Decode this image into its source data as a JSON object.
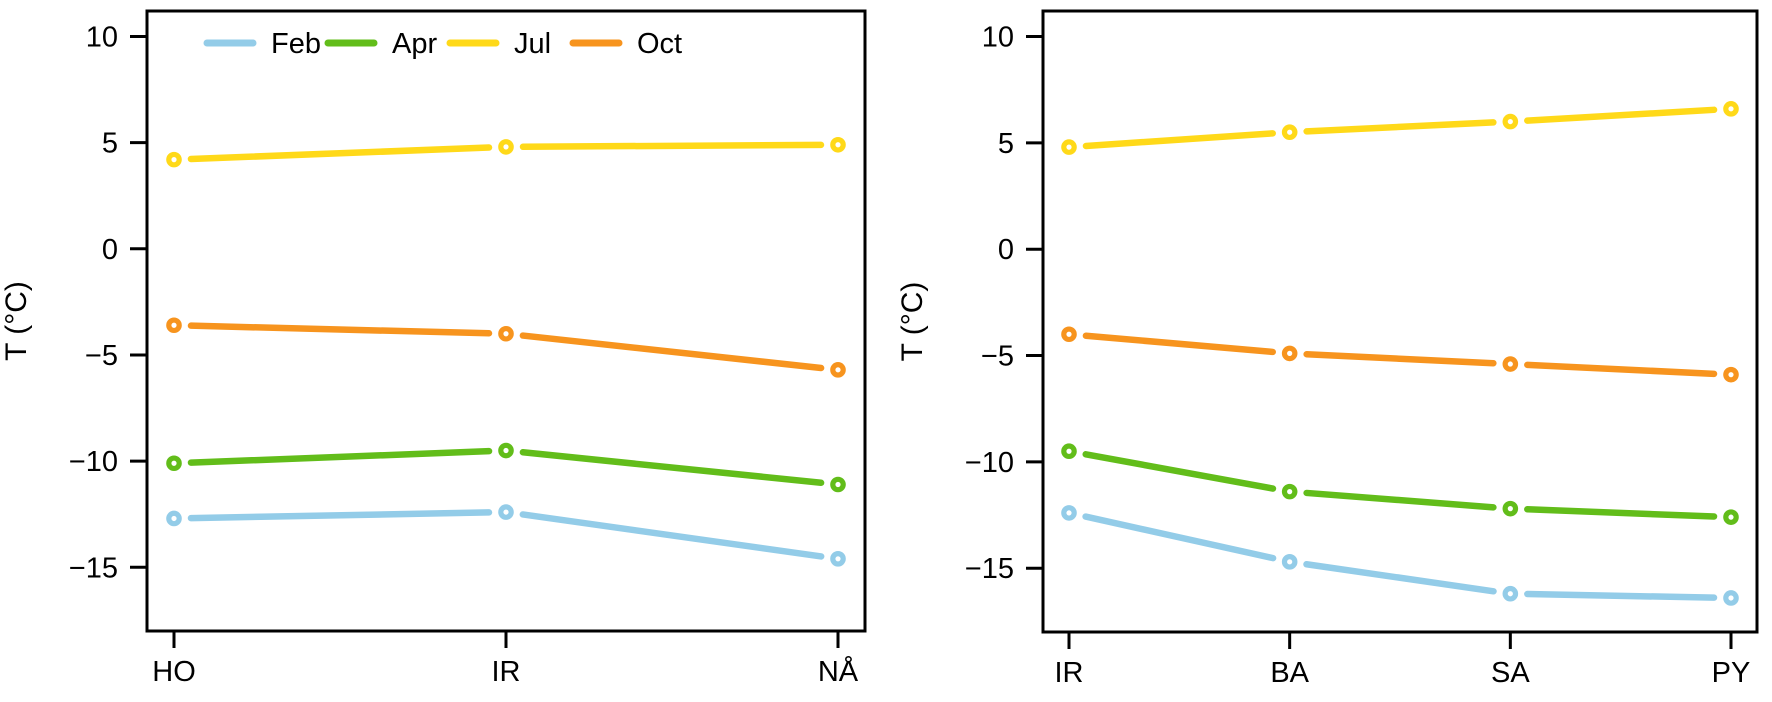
{
  "figure": {
    "background": "#ffffff",
    "axis_color": "#000000",
    "ylabel": "T (°C)",
    "legend": {
      "position": "top-inside-left-panel",
      "items": [
        "Feb",
        "Apr",
        "Jul",
        "Oct"
      ]
    },
    "series_colors": {
      "Feb": "#93CCE8",
      "Apr": "#62BD1A",
      "Jul": "#FFD919",
      "Oct": "#F7941E"
    }
  },
  "chart_data": [
    {
      "type": "line",
      "panel": "left",
      "title": "",
      "xlabel": "",
      "ylabel": "T (°C)",
      "categories": [
        "HO",
        "IR",
        "NÅ"
      ],
      "yticks": [
        10,
        5,
        0,
        -5,
        -10,
        -15
      ],
      "ylim": [
        -18.0,
        11.2
      ],
      "grid": false,
      "legend": true,
      "marker": "open-circle",
      "series": [
        {
          "name": "Feb",
          "color": "#93CCE8",
          "values": [
            -12.7,
            -12.4,
            -14.6
          ]
        },
        {
          "name": "Apr",
          "color": "#62BD1A",
          "values": [
            -10.1,
            -9.5,
            -11.1
          ]
        },
        {
          "name": "Jul",
          "color": "#FFD919",
          "values": [
            4.2,
            4.8,
            4.9
          ]
        },
        {
          "name": "Oct",
          "color": "#F7941E",
          "values": [
            -3.6,
            -4.0,
            -5.7
          ]
        }
      ]
    },
    {
      "type": "line",
      "panel": "right",
      "title": "",
      "xlabel": "",
      "ylabel": "T (°C)",
      "categories": [
        "IR",
        "BA",
        "SA",
        "PY"
      ],
      "yticks": [
        10,
        5,
        0,
        -5,
        -10,
        -15
      ],
      "ylim": [
        -18.0,
        11.2
      ],
      "grid": false,
      "legend": false,
      "marker": "open-circle",
      "series": [
        {
          "name": "Feb",
          "color": "#93CCE8",
          "values": [
            -12.4,
            -14.7,
            -16.2,
            -16.4
          ]
        },
        {
          "name": "Apr",
          "color": "#62BD1A",
          "values": [
            -9.5,
            -11.4,
            -12.2,
            -12.6
          ]
        },
        {
          "name": "Jul",
          "color": "#FFD919",
          "values": [
            4.8,
            5.5,
            6.0,
            6.6
          ]
        },
        {
          "name": "Oct",
          "color": "#F7941E",
          "values": [
            -4.0,
            -4.9,
            -5.4,
            -5.9
          ]
        }
      ]
    }
  ]
}
